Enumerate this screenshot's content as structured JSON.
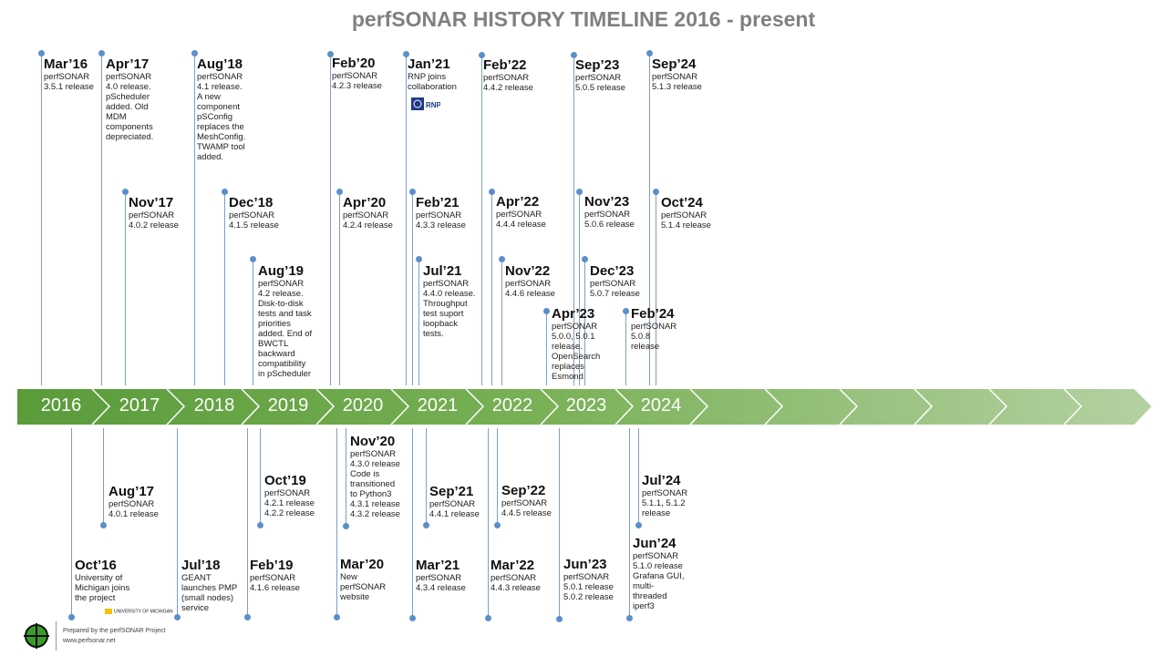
{
  "title": "perfSONAR HISTORY TIMELINE 2016 - present",
  "years": [
    "2016",
    "2017",
    "2018",
    "2019",
    "2020",
    "2021",
    "2022",
    "2023",
    "2024"
  ],
  "events_top": [
    {
      "date": "Mar’16",
      "text": "perfSONAR\n3.5.1 release"
    },
    {
      "date": "Apr’17",
      "text": "perfSONAR\n4.0 release.\npScheduler\nadded. Old\nMDM\ncomponents\ndepreciated."
    },
    {
      "date": "Aug’18",
      "text": "perfSONAR\n4.1 release.\nA new\ncomponent\npSConfig\nreplaces the\nMeshConfig.\nTWAMP tool\nadded."
    },
    {
      "date": "Feb’20",
      "text": "perfSONAR\n4.2.3 release"
    },
    {
      "date": "Jan’21",
      "text": "RNP joins\ncollaboration"
    },
    {
      "date": "Feb’22",
      "text": "perfSONAR\n4.4.2 release"
    },
    {
      "date": "Sep’23",
      "text": "perfSONAR\n5.0.5 release"
    },
    {
      "date": "Sep’24",
      "text": "perfSONAR\n5.1.3 release"
    },
    {
      "date": "Nov’17",
      "text": "perfSONAR\n4.0.2 release"
    },
    {
      "date": "Dec’18",
      "text": "perfSONAR\n4.1.5 release"
    },
    {
      "date": "Apr’20",
      "text": "perfSONAR\n4.2.4 release"
    },
    {
      "date": "Feb’21",
      "text": "perfSONAR\n4.3.3 release"
    },
    {
      "date": "Apr’22",
      "text": "perfSONAR\n4.4.4 release"
    },
    {
      "date": "Nov’23",
      "text": "perfSONAR\n5.0.6 release"
    },
    {
      "date": "Oct’24",
      "text": "perfSONAR\n5.1.4 release"
    },
    {
      "date": "Aug’19",
      "text": "perfSONAR\n4.2 release.\nDisk-to-disk\ntests and task\npriorities\nadded. End of\nBWCTL\nbackward\ncompatibility\nin pScheduler"
    },
    {
      "date": "Jul’21",
      "text": "perfSONAR\n4.4.0 release.\nThroughput\ntest suport\nloopback\ntests."
    },
    {
      "date": "Nov’22",
      "text": "perfSONAR\n4.4.6 release"
    },
    {
      "date": "Dec’23",
      "text": "perfSONAR\n5.0.7 release"
    },
    {
      "date": "Apr’23",
      "text": "perfSONAR\n5.0.0, 5.0.1\nrelease.\nOpenSearch\nreplaces\nEsmond"
    },
    {
      "date": "Feb’24",
      "text": "perfSONAR\n5.0.8\nrelease"
    }
  ],
  "events_bottom": [
    {
      "date": "Oct’16",
      "text": "University of\nMichigan joins\nthe project"
    },
    {
      "date": "Aug’17",
      "text": "perfSONAR\n4.0.1 release"
    },
    {
      "date": "Jul’18",
      "text": "GEANT\nlaunches PMP\n(small nodes)\nservice"
    },
    {
      "date": "Feb’19",
      "text": "perfSONAR\n4.1.6 release"
    },
    {
      "date": "Oct’19",
      "text": "perfSONAR\n4.2.1 release\n4.2.2 release"
    },
    {
      "date": "Nov’20",
      "text": "perfSONAR\n4.3.0 release\nCode is\ntransitioned\nto Python3\n4.3.1 release\n4.3.2 release"
    },
    {
      "date": "Mar’20",
      "text": "New\nperfSONAR\nwebsite"
    },
    {
      "date": "Sep’21",
      "text": "perfSONAR\n4.4.1 release"
    },
    {
      "date": "Mar’21",
      "text": "perfSONAR\n4.3.4 release"
    },
    {
      "date": "Sep’22",
      "text": "perfSONAR\n4.4.5 release"
    },
    {
      "date": "Mar’22",
      "text": "perfSONAR\n4.4.3 release"
    },
    {
      "date": "Jun’23",
      "text": "perfSONAR\n5.0.1 release\n5.0.2 release"
    },
    {
      "date": "Jul’24",
      "text": "perfSONAR\n5.1.1, 5.1.2\nrelease"
    },
    {
      "date": "Jun’24",
      "text": "perfSONAR\n5.1.0 release\nGrafana GUI,\nmulti-\nthreaded\niperf3"
    }
  ],
  "logos": {
    "rnp": "RNP",
    "umich": "UNIVERSITY OF MICHIGAN"
  },
  "footer": {
    "line1": "Prepared by the perfSONAR Project",
    "line2": "www.perfsonar.net"
  },
  "colors": {
    "band_start": "#5d9e3d",
    "band_end": "#b2cf9e",
    "dot": "#5b8fc9",
    "title": "#808080"
  }
}
